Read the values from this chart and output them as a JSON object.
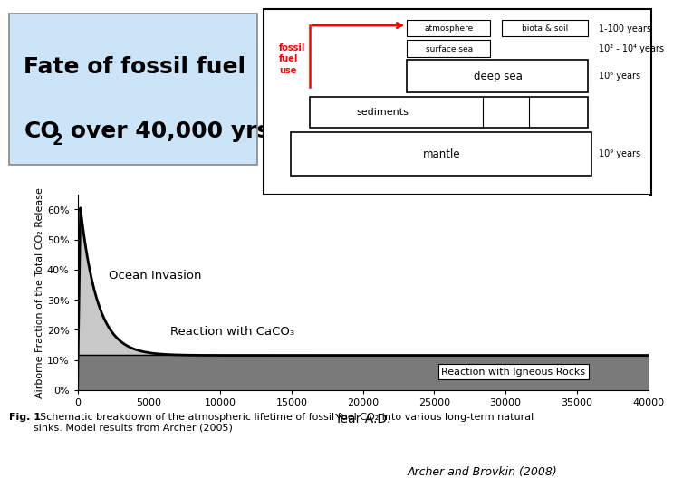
{
  "title_line1": "Fate of fossil fuel",
  "title_line2_co": "CO",
  "title_line2_rest": " over 40,000 yrs",
  "title_bg": "#cce4f7",
  "title_border": "#888888",
  "xlabel": "Year A.D.",
  "ylabel": "Airborne Fraction of the Total CO₂ Release",
  "ylim": [
    0,
    0.65
  ],
  "xlim": [
    0,
    40000
  ],
  "yticks": [
    0.0,
    0.1,
    0.2,
    0.3,
    0.4,
    0.5,
    0.6
  ],
  "ytick_labels": [
    "0%",
    "10%",
    "20%",
    "30%",
    "40%",
    "50%",
    "60%"
  ],
  "xticks": [
    0,
    5000,
    10000,
    15000,
    20000,
    25000,
    30000,
    35000,
    40000
  ],
  "xtick_labels": [
    "0",
    "5000",
    "10000",
    "15000",
    "20000",
    "25000",
    "30000",
    "35000",
    "40000"
  ],
  "igneous_level": 0.115,
  "igneous_color": "#7a7a7a",
  "light_gray": "#c8c8c8",
  "ocean_invasion_label": "Ocean Invasion",
  "caco3_label": "Reaction with CaCO₃",
  "igneous_label": "Reaction with Igneous Rocks",
  "fig_caption_bold": "Fig. 1",
  "fig_caption_rest": "  Schematic breakdown of the atmospheric lifetime of fossil fuel CO₂ into various long-term natural\nsinks. Model results from Archer (2005)",
  "citation": "Archer and Brovkin (2008)"
}
